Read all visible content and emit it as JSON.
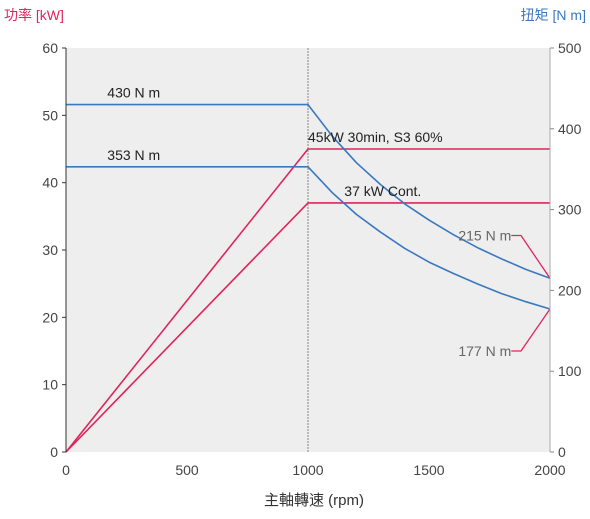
{
  "chart_data": {
    "type": "line",
    "title": "",
    "xlabel": "主軸轉速 (rpm)",
    "y1label": "功率 [kW]",
    "y2label": "扭矩 [N m]",
    "xlim": [
      0,
      2000
    ],
    "y1lim": [
      0,
      60
    ],
    "y2lim": [
      0,
      500
    ],
    "xticks": [
      0,
      500,
      1000,
      1500,
      2000
    ],
    "y1ticks": [
      0,
      10,
      20,
      30,
      40,
      50,
      60
    ],
    "y2ticks": [
      0,
      100,
      200,
      300,
      400,
      500
    ],
    "grid": false,
    "colors": {
      "power": "#e0245e",
      "torque": "#3a78c0",
      "left_axis_label": "#e0245e",
      "right_axis_label": "#3a78c0",
      "plot_bg": "#eeeeee"
    },
    "series": [
      {
        "axis": "left",
        "color": "#e0245e",
        "points": [
          [
            0,
            0
          ],
          [
            1000,
            45
          ],
          [
            2000,
            45
          ]
        ]
      },
      {
        "axis": "left",
        "color": "#e0245e",
        "points": [
          [
            0,
            0
          ],
          [
            1000,
            37
          ],
          [
            2000,
            37
          ]
        ]
      },
      {
        "axis": "right",
        "color": "#3a78c0",
        "points": [
          [
            0,
            430
          ],
          [
            1000,
            430
          ],
          [
            1100,
            391
          ],
          [
            1200,
            358
          ],
          [
            1300,
            331
          ],
          [
            1400,
            307
          ],
          [
            1500,
            287
          ],
          [
            1600,
            269
          ],
          [
            1700,
            253
          ],
          [
            1800,
            239
          ],
          [
            1900,
            226
          ],
          [
            2000,
            215
          ]
        ]
      },
      {
        "axis": "right",
        "color": "#3a78c0",
        "points": [
          [
            0,
            353
          ],
          [
            1000,
            353
          ],
          [
            1100,
            321
          ],
          [
            1200,
            294
          ],
          [
            1300,
            272
          ],
          [
            1400,
            252
          ],
          [
            1500,
            235
          ],
          [
            1600,
            221
          ],
          [
            1700,
            208
          ],
          [
            1800,
            196
          ],
          [
            1900,
            186
          ],
          [
            2000,
            177
          ]
        ]
      }
    ],
    "annotations": [
      {
        "text": "430 N m",
        "x": 280,
        "y_axis": "right",
        "y": 430,
        "anchor": "middle",
        "color": "#222222",
        "place": "above"
      },
      {
        "text": "353 N m",
        "x": 280,
        "y_axis": "right",
        "y": 353,
        "anchor": "middle",
        "color": "#222222",
        "place": "above"
      },
      {
        "text": "45kW 30min, S3 60%",
        "x": 1000,
        "y_axis": "left",
        "y": 45,
        "anchor": "start",
        "color": "#222222",
        "place": "above"
      },
      {
        "text": "37 kW Cont.",
        "x": 1150,
        "y_axis": "left",
        "y": 37,
        "anchor": "start",
        "color": "#222222",
        "place": "above"
      },
      {
        "text": "215 N m",
        "x": 1840,
        "y_axis": "right",
        "y": 268,
        "anchor": "end",
        "color": "#666666",
        "place": "middle"
      },
      {
        "text": "177  N m",
        "x": 1840,
        "y_axis": "right",
        "y": 125,
        "anchor": "end",
        "color": "#666666",
        "place": "middle"
      }
    ],
    "leaders": [
      {
        "color": "#e0245e",
        "points": [
          [
            1840,
            268
          ],
          [
            1880,
            268
          ],
          [
            2000,
            215
          ]
        ]
      },
      {
        "color": "#e0245e",
        "points": [
          [
            1840,
            125
          ],
          [
            1880,
            125
          ],
          [
            2000,
            177
          ]
        ]
      }
    ],
    "vline": {
      "x": 1000,
      "color": "#999999"
    }
  }
}
